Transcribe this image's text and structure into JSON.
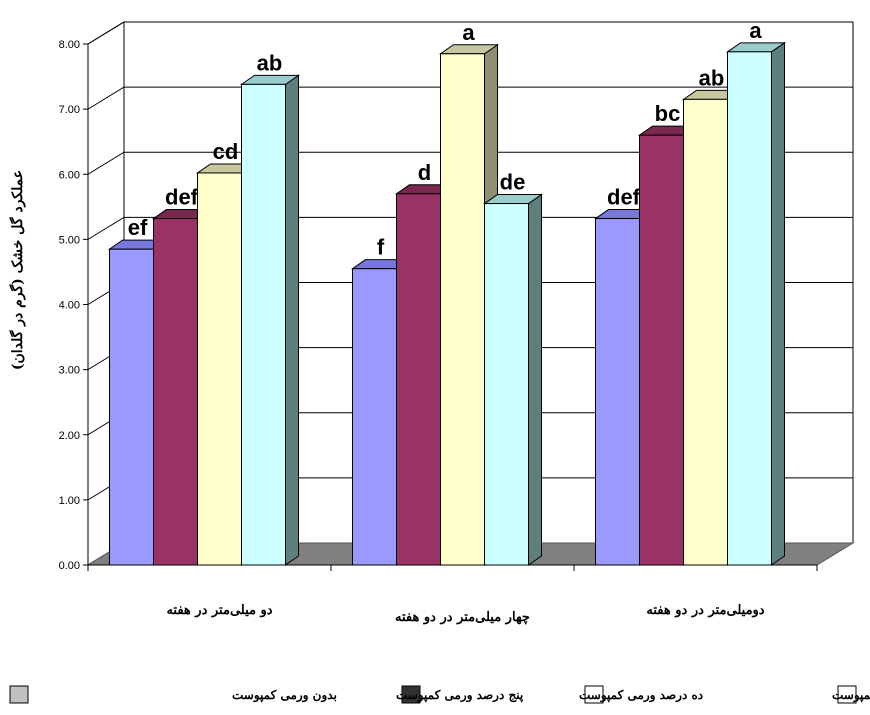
{
  "chart_data": {
    "type": "bar",
    "style": "3d-clustered-column",
    "ylabel": "عملکرد گل خشک (گرم در گلدان)",
    "ylim": [
      0,
      8
    ],
    "ytick_step": 1,
    "ytick_labels": [
      "0.00",
      "1.00",
      "2.00",
      "3.00",
      "4.00",
      "5.00",
      "6.00",
      "7.00",
      "8.00"
    ],
    "grid": true,
    "categories": [
      "دو میلی‌متر در هفته",
      "چهار میلی‌متر در دو هفته",
      "دومیلی‌متر در دو هفته"
    ],
    "series": [
      {
        "name": "بدون ورمی کمپوست",
        "color": "#9999FF",
        "side": "#6666CC",
        "top": "#7777DD",
        "values": [
          4.85,
          4.55,
          5.32
        ],
        "letters": [
          "ef",
          "f",
          "def"
        ]
      },
      {
        "name": "پنج درصد ورمی کمپوست",
        "color": "#993366",
        "side": "#662244",
        "top": "#7A2850",
        "values": [
          5.32,
          5.7,
          6.6
        ],
        "letters": [
          "def",
          "d",
          "bc"
        ]
      },
      {
        "name": "ده درصد ورمی کمپوست",
        "color": "#FFFFCC",
        "side": "#8F8F72",
        "top": "#C8C8A0",
        "values": [
          6.02,
          7.85,
          7.15
        ],
        "letters": [
          "cd",
          "a",
          "ab"
        ]
      },
      {
        "name": "پانزده درصد ورمی کمپوست",
        "color": "#CCFFFF",
        "side": "#5F7F7F",
        "top": "#99CCCC",
        "values": [
          7.38,
          5.55,
          7.88
        ],
        "letters": [
          "ab",
          "de",
          "a"
        ]
      }
    ],
    "legend_position": "bottom"
  }
}
